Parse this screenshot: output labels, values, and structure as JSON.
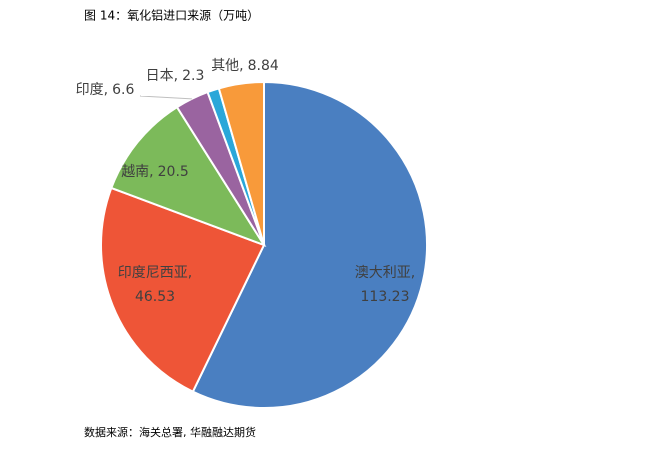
{
  "chart_data": {
    "type": "pie",
    "title": "图 14：氧化铝进口来源（万吨）",
    "source": "数据来源：海关总署, 华融融达期货",
    "categories": [
      "澳大利亚",
      "印度尼西亚",
      "越南",
      "印度",
      "日本",
      "其他"
    ],
    "values": [
      113.23,
      46.53,
      20.5,
      6.6,
      2.3,
      8.84
    ],
    "colors": [
      "#4a7fc1",
      "#ee5537",
      "#7cba5a",
      "#9a64a0",
      "#2aa7d9",
      "#f89a3a"
    ]
  }
}
